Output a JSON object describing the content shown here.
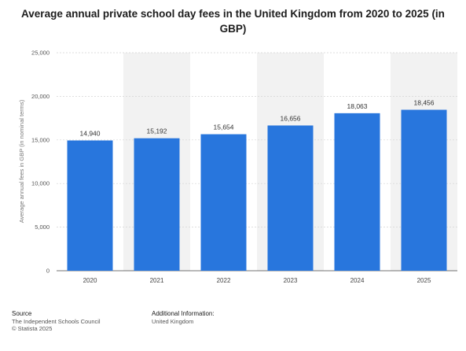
{
  "title": "Average annual private school day fees in the United Kingdom from 2020 to 2025 (in GBP)",
  "chart_data": {
    "type": "bar",
    "categories": [
      "2020",
      "2021",
      "2022",
      "2023",
      "2024",
      "2025"
    ],
    "values": [
      14940,
      15192,
      15654,
      16656,
      18063,
      18456
    ],
    "value_labels": [
      "14,940",
      "15,192",
      "15,654",
      "16,656",
      "18,063",
      "18,456"
    ],
    "title": "Average annual private school day fees in the United Kingdom from 2020 to 2025 (in GBP)",
    "xlabel": "",
    "ylabel": "Average annual fees in GBP (in nominal terms)",
    "ylim": [
      0,
      25000
    ],
    "yticks": [
      0,
      5000,
      10000,
      15000,
      20000,
      25000
    ],
    "ytick_labels": [
      "0",
      "5,000",
      "10,000",
      "15,000",
      "20,000",
      "25,000"
    ],
    "bar_color": "#2876dd",
    "alt_band_color": "#f2f2f2",
    "grid": true,
    "legend": "none"
  },
  "footer": {
    "source_heading": "Source",
    "source_lines": [
      "The Independent Schools Council",
      "© Statista 2025"
    ],
    "info_heading": "Additional Information:",
    "info_lines": [
      "United Kingdom"
    ]
  }
}
